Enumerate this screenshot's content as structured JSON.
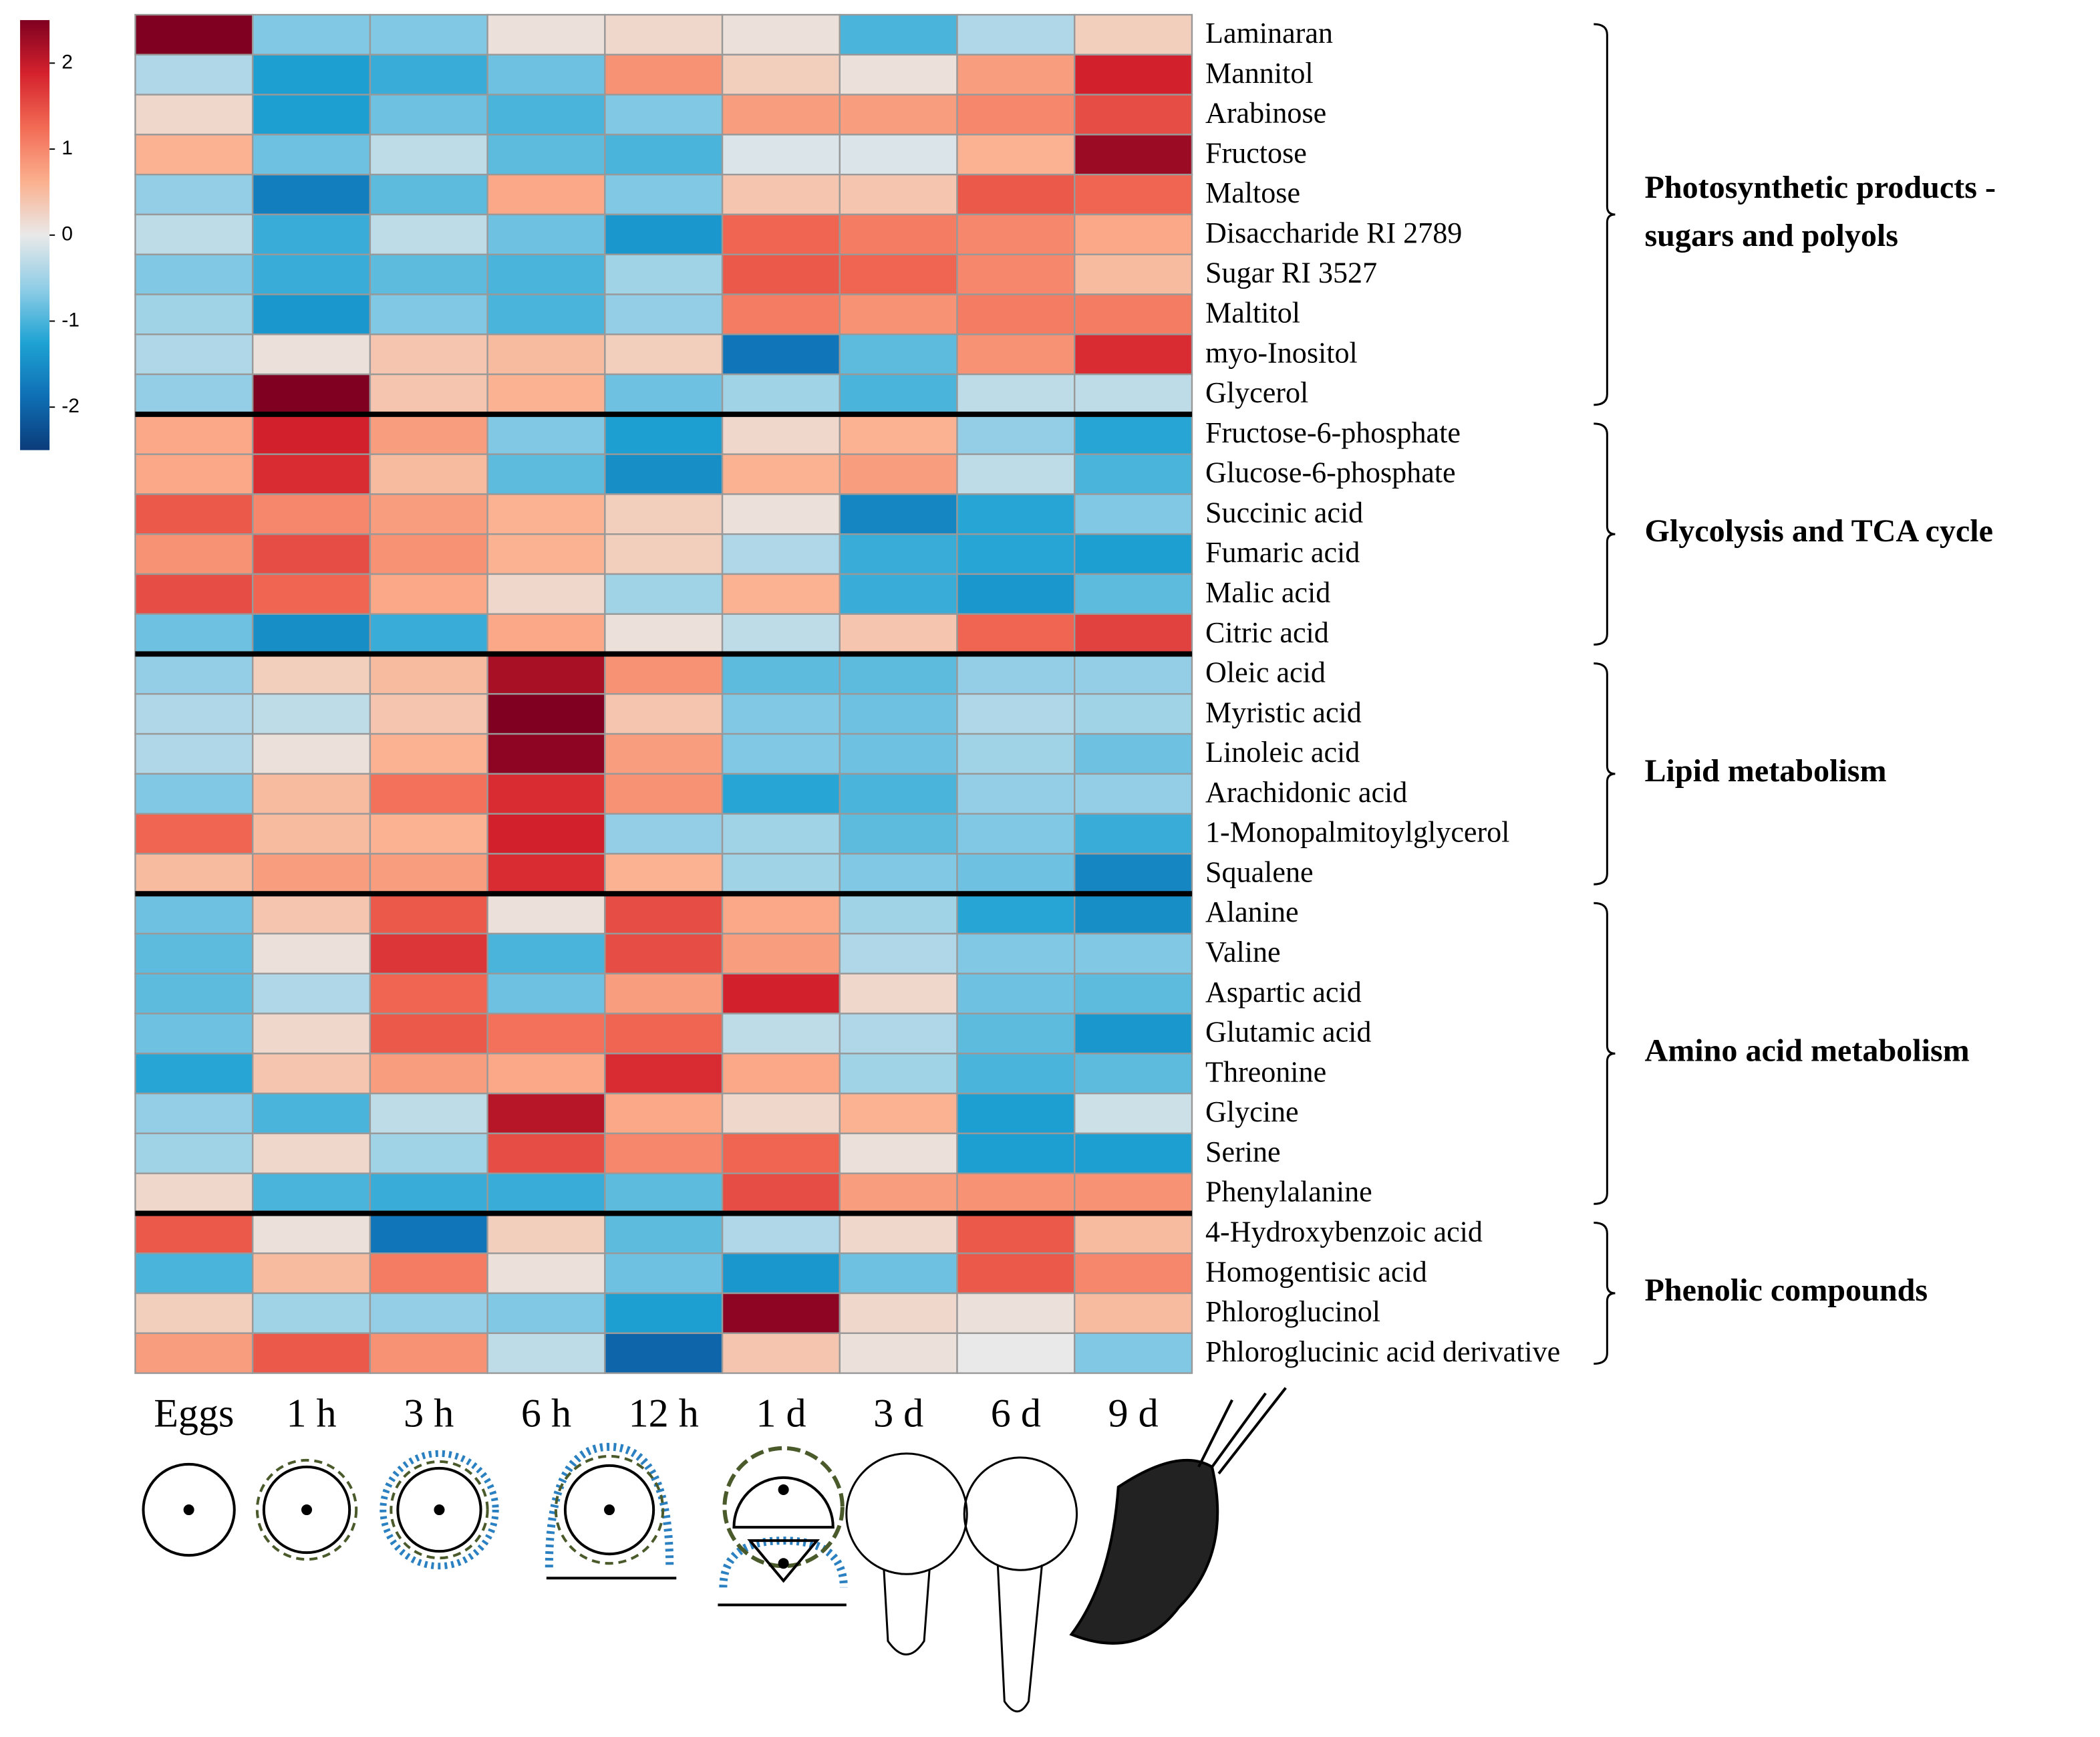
{
  "chart_data": {
    "type": "heatmap",
    "rows": [
      "Laminaran",
      "Mannitol",
      "Arabinose",
      "Fructose",
      "Maltose",
      "Disaccharide RI 2789",
      "Sugar RI 3527",
      "Maltitol",
      "myo-Inositol",
      "Glycerol",
      "Fructose-6-phosphate",
      "Glucose-6-phosphate",
      "Succinic acid",
      "Fumaric acid",
      "Malic acid",
      "Citric acid",
      "Oleic acid",
      "Myristic acid",
      "Linoleic acid",
      "Arachidonic acid",
      "1-Monopalmitoylglycerol",
      "Squalene",
      "Alanine",
      "Valine",
      "Aspartic acid",
      "Glutamic acid",
      "Threonine",
      "Glycine",
      "Serine",
      "Phenylalanine",
      "4-Hydroxybenzoic acid",
      "Homogentisic acid",
      "Phloroglucinol",
      "Phloroglucinic acid derivative"
    ],
    "columns": [
      "Eggs",
      "1 h",
      "3 h",
      "6 h",
      "12 h",
      "1 d",
      "3 d",
      "6 d",
      "9 d"
    ],
    "values": [
      [
        2.5,
        -0.7,
        -0.7,
        0.1,
        0.2,
        0.1,
        -1.0,
        -0.4,
        0.3
      ],
      [
        -0.4,
        -1.3,
        -1.1,
        -0.8,
        0.9,
        0.3,
        0.1,
        0.8,
        1.9
      ],
      [
        0.2,
        -1.3,
        -0.8,
        -1.0,
        -0.7,
        0.8,
        0.8,
        1.0,
        1.5
      ],
      [
        0.6,
        -0.8,
        -0.3,
        -0.9,
        -1.0,
        -0.1,
        -0.1,
        0.6,
        2.3
      ],
      [
        -0.6,
        -1.7,
        -0.9,
        0.7,
        -0.7,
        0.4,
        0.4,
        1.4,
        1.3
      ],
      [
        -0.3,
        -1.1,
        -0.3,
        -0.8,
        -1.4,
        1.3,
        1.1,
        1.0,
        0.7
      ],
      [
        -0.7,
        -1.1,
        -0.9,
        -1.0,
        -0.5,
        1.4,
        1.3,
        1.0,
        0.5
      ],
      [
        -0.5,
        -1.4,
        -0.7,
        -1.0,
        -0.6,
        1.1,
        0.9,
        1.1,
        1.1
      ],
      [
        -0.4,
        0.1,
        0.4,
        0.5,
        0.3,
        -1.8,
        -0.9,
        0.9,
        1.8
      ],
      [
        -0.6,
        2.5,
        0.4,
        0.6,
        -0.8,
        -0.5,
        -1.0,
        -0.3,
        -0.3
      ],
      [
        0.7,
        1.9,
        0.8,
        -0.7,
        -1.3,
        0.2,
        0.6,
        -0.6,
        -1.2
      ],
      [
        0.7,
        1.8,
        0.5,
        -0.9,
        -1.5,
        0.6,
        0.8,
        -0.3,
        -1.0
      ],
      [
        1.4,
        1.0,
        0.8,
        0.6,
        0.3,
        0.1,
        -1.6,
        -1.2,
        -0.7
      ],
      [
        0.9,
        1.5,
        0.9,
        0.6,
        0.3,
        -0.4,
        -1.1,
        -1.2,
        -1.3
      ],
      [
        1.5,
        1.3,
        0.7,
        0.2,
        -0.5,
        0.6,
        -1.1,
        -1.4,
        -0.9
      ],
      [
        -0.8,
        -1.5,
        -1.1,
        0.7,
        0.1,
        -0.3,
        0.4,
        1.3,
        1.6
      ],
      [
        -0.6,
        0.3,
        0.5,
        2.2,
        0.9,
        -0.9,
        -0.9,
        -0.6,
        -0.6
      ],
      [
        -0.4,
        -0.3,
        0.4,
        2.6,
        0.4,
        -0.7,
        -0.8,
        -0.4,
        -0.5
      ],
      [
        -0.4,
        0.1,
        0.6,
        2.4,
        0.8,
        -0.7,
        -0.8,
        -0.5,
        -0.8
      ],
      [
        -0.7,
        0.5,
        1.2,
        1.8,
        0.9,
        -1.2,
        -1.0,
        -0.6,
        -0.6
      ],
      [
        1.3,
        0.5,
        0.6,
        1.9,
        -0.6,
        -0.5,
        -0.9,
        -0.7,
        -1.1
      ],
      [
        0.5,
        0.8,
        0.8,
        1.8,
        0.6,
        -0.5,
        -0.7,
        -0.8,
        -1.6
      ],
      [
        -0.8,
        0.4,
        1.4,
        0.1,
        1.5,
        0.7,
        -0.5,
        -1.2,
        -1.5
      ],
      [
        -0.9,
        0.1,
        1.7,
        -1.0,
        1.5,
        0.8,
        -0.4,
        -0.7,
        -0.7
      ],
      [
        -0.9,
        -0.4,
        1.3,
        -0.8,
        0.8,
        1.9,
        0.2,
        -0.8,
        -0.9
      ],
      [
        -0.8,
        0.2,
        1.4,
        1.2,
        1.3,
        -0.3,
        -0.4,
        -0.9,
        -1.4
      ],
      [
        -1.2,
        0.4,
        0.8,
        0.7,
        1.8,
        0.7,
        -0.5,
        -1.0,
        -0.9
      ],
      [
        -0.6,
        -1.0,
        -0.3,
        2.1,
        0.7,
        0.2,
        0.6,
        -1.3,
        -0.2
      ],
      [
        -0.5,
        0.2,
        -0.5,
        1.5,
        1.0,
        1.3,
        0.1,
        -1.3,
        -1.3
      ],
      [
        0.2,
        -1.0,
        -1.1,
        -1.1,
        -0.9,
        1.5,
        0.8,
        0.9,
        0.9
      ],
      [
        1.4,
        0.1,
        -1.8,
        0.3,
        -0.9,
        -0.4,
        0.2,
        1.4,
        0.5
      ],
      [
        -1.0,
        0.5,
        1.1,
        0.1,
        -0.8,
        -1.4,
        -0.8,
        1.4,
        1.0
      ],
      [
        0.3,
        -0.5,
        -0.6,
        -0.7,
        -1.3,
        2.4,
        0.2,
        0.1,
        0.5
      ],
      [
        0.8,
        1.4,
        0.9,
        -0.3,
        -2.0,
        0.4,
        0.1,
        0.0,
        -0.7
      ]
    ],
    "groups": [
      {
        "label": [
          "Photosynthetic products -",
          "sugars and polyols"
        ],
        "size": 10
      },
      {
        "label": [
          "Glycolysis and TCA cycle"
        ],
        "size": 6
      },
      {
        "label": [
          "Lipid metabolism"
        ],
        "size": 6
      },
      {
        "label": [
          "Amino acid metabolism"
        ],
        "size": 8
      },
      {
        "label": [
          "Phenolic compounds"
        ],
        "size": 4
      }
    ],
    "zlim": [
      -2.5,
      2.5
    ],
    "zticks": [
      2,
      1,
      0,
      -1,
      -2
    ],
    "colormap": [
      "#0b3c7a",
      "#0f6fb5",
      "#1ea3d3",
      "#8fcde6",
      "#e9e9e9",
      "#fbb08e",
      "#f26b55",
      "#d5222d",
      "#7f0020"
    ]
  }
}
